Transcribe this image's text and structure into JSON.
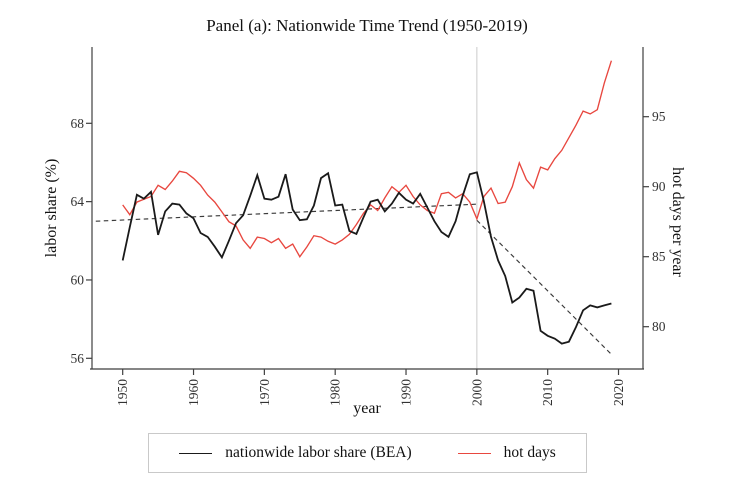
{
  "title": "Panel (a): Nationwide Time Trend (1950-2019)",
  "axes": {
    "x": {
      "label": "year",
      "ticks": [
        1950,
        1960,
        1970,
        1980,
        1990,
        2000,
        2010,
        2020
      ]
    },
    "y_left": {
      "label": "labor share (%)",
      "ticks": [
        56,
        60,
        64,
        68
      ]
    },
    "y_right": {
      "label": "hot days per year",
      "ticks": [
        80,
        85,
        90,
        95
      ]
    }
  },
  "legend": {
    "items": [
      {
        "label": "nationwide labor share (BEA)",
        "color": "#1a1a1a"
      },
      {
        "label": "hot days",
        "color": "#e8473f"
      }
    ]
  },
  "colors": {
    "labor_share_line": "#1a1a1a",
    "hot_days_line": "#e8473f",
    "trend_line": "#3a3a3a",
    "reference_line": "#d4d4d4",
    "axis": "#3f3f3f",
    "tick_text": "#333333"
  },
  "chart_data": {
    "type": "line",
    "title": "Panel (a): Nationwide Time Trend (1950-2019)",
    "xlabel": "year",
    "ylabel_left": "labor share (%)",
    "ylabel_right": "hot days per year",
    "x_range": [
      1945.7,
      2023.4
    ],
    "y_left_range": [
      55.4,
      71.9
    ],
    "y_right_range": [
      77.0,
      100.0
    ],
    "grid": false,
    "legend_position": "bottom",
    "x": [
      1950,
      1951,
      1952,
      1953,
      1954,
      1955,
      1956,
      1957,
      1958,
      1959,
      1960,
      1961,
      1962,
      1963,
      1964,
      1965,
      1966,
      1967,
      1968,
      1969,
      1970,
      1971,
      1972,
      1973,
      1974,
      1975,
      1976,
      1977,
      1978,
      1979,
      1980,
      1981,
      1982,
      1983,
      1984,
      1985,
      1986,
      1987,
      1988,
      1989,
      1990,
      1991,
      1992,
      1993,
      1994,
      1995,
      1996,
      1997,
      1998,
      1999,
      2000,
      2001,
      2002,
      2003,
      2004,
      2005,
      2006,
      2007,
      2008,
      2009,
      2010,
      2011,
      2012,
      2013,
      2014,
      2015,
      2016,
      2017,
      2018,
      2019
    ],
    "series": [
      {
        "name": "nationwide labor share (BEA)",
        "axis": "left",
        "color": "#1a1a1a",
        "values": [
          61.0,
          62.7,
          64.35,
          64.15,
          64.5,
          62.3,
          63.5,
          63.9,
          63.85,
          63.4,
          63.15,
          62.4,
          62.2,
          61.7,
          61.15,
          62.0,
          62.9,
          63.3,
          64.3,
          65.35,
          64.15,
          64.1,
          64.25,
          65.4,
          63.6,
          63.05,
          63.1,
          63.8,
          65.2,
          65.45,
          63.8,
          63.85,
          62.5,
          62.35,
          63.2,
          64.0,
          64.1,
          63.5,
          63.9,
          64.45,
          64.1,
          63.9,
          64.4,
          63.7,
          63.0,
          62.45,
          62.2,
          63.0,
          64.3,
          65.4,
          65.5,
          64.0,
          62.2,
          61.0,
          60.2,
          58.85,
          59.1,
          59.55,
          59.45,
          57.4,
          57.15,
          57.0,
          56.75,
          56.85,
          57.6,
          58.45,
          58.7,
          58.6,
          58.7,
          58.8
        ]
      },
      {
        "name": "hot days",
        "axis": "right",
        "color": "#e8473f",
        "values": [
          88.7,
          88.0,
          88.9,
          89.1,
          89.3,
          90.1,
          89.8,
          90.4,
          91.1,
          91.0,
          90.6,
          90.1,
          89.4,
          88.9,
          88.2,
          87.5,
          87.2,
          86.2,
          85.6,
          86.4,
          86.3,
          86.0,
          86.3,
          85.6,
          85.9,
          85.0,
          85.7,
          86.5,
          86.4,
          86.1,
          85.9,
          86.2,
          86.6,
          87.3,
          88.1,
          88.7,
          88.3,
          89.2,
          90.0,
          89.6,
          90.1,
          89.3,
          88.7,
          88.3,
          88.1,
          89.5,
          89.6,
          89.2,
          89.5,
          88.9,
          87.7,
          89.3,
          89.9,
          88.8,
          88.9,
          90.0,
          91.7,
          90.5,
          89.9,
          91.4,
          91.2,
          92.0,
          92.6,
          93.5,
          94.4,
          95.4,
          95.2,
          95.5,
          97.4,
          99.0
        ]
      }
    ],
    "trend_lines": [
      {
        "name": "pre-2000 trend",
        "axis": "left",
        "style": "dashed",
        "x": [
          1946.2,
          2000
        ],
        "values": [
          63.0,
          63.87
        ]
      },
      {
        "name": "post-2000 trend",
        "axis": "left",
        "style": "dashed",
        "x": [
          2000,
          2019
        ],
        "values": [
          63.05,
          56.2
        ]
      }
    ],
    "reference_line": {
      "orientation": "vertical",
      "x": 2000
    }
  }
}
